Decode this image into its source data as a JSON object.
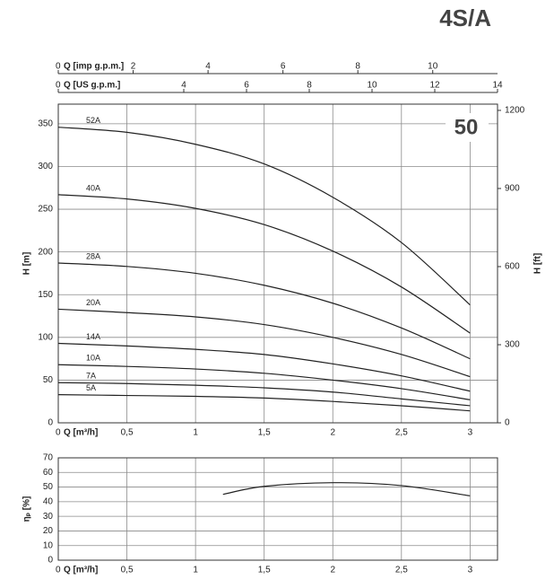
{
  "chart_data": [
    {
      "type": "line",
      "title": "4S/A",
      "badge": "50",
      "x_label": "Q [m³/h]",
      "y_label": "H [m]",
      "y2_label": "H [ft]",
      "xlim": [
        0,
        3.2
      ],
      "ylim": [
        0,
        373
      ],
      "y2lim": [
        0,
        1224
      ],
      "xticks": [
        0,
        {
          "value": 0.5,
          "label": "0,5"
        },
        1,
        {
          "value": 1.5,
          "label": "1,5"
        },
        2,
        {
          "value": 2.5,
          "label": "2,5"
        },
        3
      ],
      "yticks": [
        0,
        50,
        100,
        150,
        200,
        250,
        300,
        350
      ],
      "y2ticks": [
        0,
        300,
        600,
        900,
        1200
      ],
      "grid": true,
      "color": "#222222",
      "top_axes": [
        {
          "label": "Q [imp g.p.m.]",
          "xlim": [
            0,
            11.73
          ],
          "xticks": [
            0,
            2,
            4,
            6,
            8,
            10
          ]
        },
        {
          "label": "Q [US g.p.m.]",
          "xlim": [
            0,
            14
          ],
          "xticks": [
            0,
            4,
            6,
            8,
            10,
            12,
            14
          ]
        }
      ],
      "x": [
        0,
        0.5,
        1,
        1.5,
        2,
        2.5,
        3
      ],
      "series": [
        {
          "name": "52A",
          "values": [
            346,
            340,
            326,
            303,
            264,
            211,
            138
          ]
        },
        {
          "name": "40A",
          "values": [
            267,
            262,
            251,
            232,
            201,
            159,
            105
          ]
        },
        {
          "name": "28A",
          "values": [
            187,
            183,
            175,
            161,
            140,
            111,
            75
          ]
        },
        {
          "name": "20A",
          "values": [
            133,
            129,
            124,
            115,
            100,
            80,
            54
          ]
        },
        {
          "name": "14A",
          "values": [
            93,
            90,
            86,
            80,
            69,
            55,
            37
          ]
        },
        {
          "name": "10A",
          "values": [
            68,
            66,
            63,
            58,
            50,
            40,
            27
          ]
        },
        {
          "name": "7A",
          "values": [
            47,
            46,
            44,
            41,
            36,
            28,
            20
          ]
        },
        {
          "name": "5A",
          "values": [
            33,
            32,
            31,
            29,
            25,
            20,
            14
          ]
        }
      ]
    },
    {
      "type": "line",
      "x_label": "Q [m³/h]",
      "y_label": "ηₚ [%]",
      "xlim": [
        0,
        3.2
      ],
      "ylim": [
        0,
        70
      ],
      "xticks": [
        0,
        {
          "value": 0.5,
          "label": "0,5"
        },
        1,
        {
          "value": 1.5,
          "label": "1,5"
        },
        2,
        {
          "value": 2.5,
          "label": "2,5"
        },
        3
      ],
      "yticks": [
        0,
        10,
        20,
        30,
        40,
        50,
        60,
        70
      ],
      "grid": true,
      "color": "#222222",
      "x": [
        1.2,
        1.5,
        2,
        2.5,
        3
      ],
      "series": [
        {
          "values": [
            45,
            50.5,
            53,
            51,
            44
          ]
        }
      ]
    }
  ]
}
